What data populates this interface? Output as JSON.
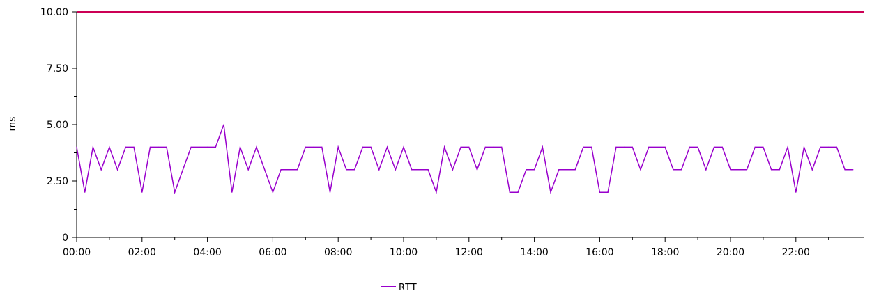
{
  "chart_data": {
    "type": "line",
    "title": "",
    "xlabel": "",
    "ylabel": "ms",
    "ylim": [
      0,
      10
    ],
    "xlim_hours": [
      0,
      24
    ],
    "y_ticks": [
      "0",
      "2.50",
      "5.00",
      "7.50",
      "10.00"
    ],
    "x_ticks": [
      "00:00",
      "02:00",
      "04:00",
      "06:00",
      "08:00",
      "10:00",
      "12:00",
      "14:00",
      "16:00",
      "18:00",
      "20:00",
      "22:00"
    ],
    "grid": false,
    "legend_position": "bottom-center",
    "threshold_line": {
      "value": 10.0,
      "color": "#cc0055"
    },
    "series": [
      {
        "name": "RTT",
        "color": "#9900cc",
        "x_hours": [
          0.0,
          0.25,
          0.5,
          0.75,
          1.0,
          1.25,
          1.5,
          1.75,
          2.0,
          2.25,
          2.5,
          2.75,
          3.0,
          3.25,
          3.5,
          3.75,
          4.0,
          4.25,
          4.5,
          4.75,
          5.0,
          5.25,
          5.5,
          5.75,
          6.0,
          6.25,
          6.5,
          6.75,
          7.0,
          7.25,
          7.5,
          7.75,
          8.0,
          8.25,
          8.5,
          8.75,
          9.0,
          9.25,
          9.5,
          9.75,
          10.0,
          10.25,
          10.5,
          10.75,
          11.0,
          11.25,
          11.5,
          11.75,
          12.0,
          12.25,
          12.5,
          12.75,
          13.0,
          13.25,
          13.5,
          13.75,
          14.0,
          14.25,
          14.5,
          14.75,
          15.0,
          15.25,
          15.5,
          15.75,
          16.0,
          16.25,
          16.5,
          16.75,
          17.0,
          17.25,
          17.5,
          17.75,
          18.0,
          18.25,
          18.5,
          18.75,
          19.0,
          19.25,
          19.5,
          19.75,
          20.0,
          20.25,
          20.5,
          20.75,
          21.0,
          21.25,
          21.5,
          21.75,
          22.0,
          22.25,
          22.5,
          22.75,
          23.0,
          23.25,
          23.5,
          23.75
        ],
        "values": [
          4.0,
          2.0,
          4.0,
          3.0,
          4.0,
          3.0,
          4.0,
          4.0,
          2.0,
          4.0,
          4.0,
          4.0,
          2.0,
          3.0,
          4.0,
          4.0,
          4.0,
          4.0,
          5.0,
          2.0,
          4.0,
          3.0,
          4.0,
          3.0,
          2.0,
          3.0,
          3.0,
          3.0,
          4.0,
          4.0,
          4.0,
          2.0,
          4.0,
          3.0,
          3.0,
          4.0,
          4.0,
          3.0,
          4.0,
          3.0,
          4.0,
          3.0,
          3.0,
          3.0,
          2.0,
          4.0,
          3.0,
          4.0,
          4.0,
          3.0,
          4.0,
          4.0,
          4.0,
          2.0,
          2.0,
          3.0,
          3.0,
          4.0,
          2.0,
          3.0,
          3.0,
          3.0,
          4.0,
          4.0,
          2.0,
          2.0,
          4.0,
          4.0,
          4.0,
          3.0,
          4.0,
          4.0,
          4.0,
          3.0,
          3.0,
          4.0,
          4.0,
          3.0,
          4.0,
          4.0,
          3.0,
          3.0,
          3.0,
          4.0,
          4.0,
          3.0,
          3.0,
          4.0,
          2.0,
          4.0,
          3.0,
          4.0,
          4.0,
          4.0,
          3.0,
          3.0
        ]
      }
    ]
  }
}
